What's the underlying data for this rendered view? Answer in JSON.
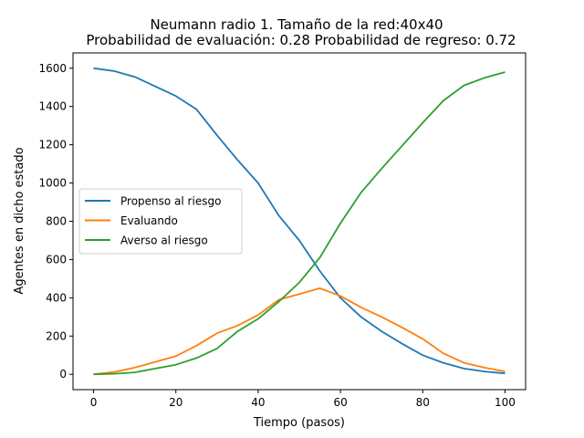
{
  "chart_data": {
    "type": "line",
    "title_line1": "Neumann radio 1. Tamaño de la red:40x40",
    "title_line2": "Probabilidad de evaluación: 0.28 Probabilidad de regreso: 0.72",
    "xlabel": "Tiempo (pasos)",
    "ylabel": "Agentes en dicho estado",
    "xlim": [
      -5,
      105
    ],
    "ylim": [
      -80,
      1680
    ],
    "xticks": [
      0,
      20,
      40,
      60,
      80,
      100
    ],
    "yticks": [
      0,
      200,
      400,
      600,
      800,
      1000,
      1200,
      1400,
      1600
    ],
    "grid": false,
    "legend_position": "center-left",
    "series": [
      {
        "name": "Propenso al riesgo",
        "color": "#1f77b4",
        "x": [
          0,
          5,
          10,
          15,
          20,
          25,
          30,
          35,
          40,
          45,
          50,
          55,
          60,
          65,
          70,
          75,
          80,
          85,
          90,
          95,
          100
        ],
        "values": [
          1600,
          1585,
          1555,
          1505,
          1455,
          1385,
          1250,
          1120,
          1000,
          830,
          700,
          540,
          400,
          300,
          225,
          160,
          100,
          60,
          30,
          15,
          5
        ]
      },
      {
        "name": "Evaluando",
        "color": "#ff7f0e",
        "x": [
          0,
          5,
          10,
          15,
          20,
          25,
          30,
          35,
          40,
          45,
          50,
          55,
          60,
          65,
          70,
          75,
          80,
          85,
          90,
          95,
          100
        ],
        "values": [
          0,
          12,
          35,
          65,
          95,
          150,
          215,
          255,
          310,
          390,
          420,
          450,
          410,
          350,
          300,
          245,
          185,
          110,
          60,
          35,
          15
        ]
      },
      {
        "name": "Averso al riesgo",
        "color": "#2ca02c",
        "x": [
          0,
          5,
          10,
          15,
          20,
          25,
          30,
          35,
          40,
          45,
          50,
          55,
          60,
          65,
          70,
          75,
          80,
          85,
          90,
          95,
          100
        ],
        "values": [
          0,
          3,
          10,
          30,
          50,
          85,
          135,
          225,
          290,
          380,
          480,
          610,
          790,
          950,
          1075,
          1195,
          1315,
          1430,
          1510,
          1550,
          1580
        ]
      }
    ]
  }
}
